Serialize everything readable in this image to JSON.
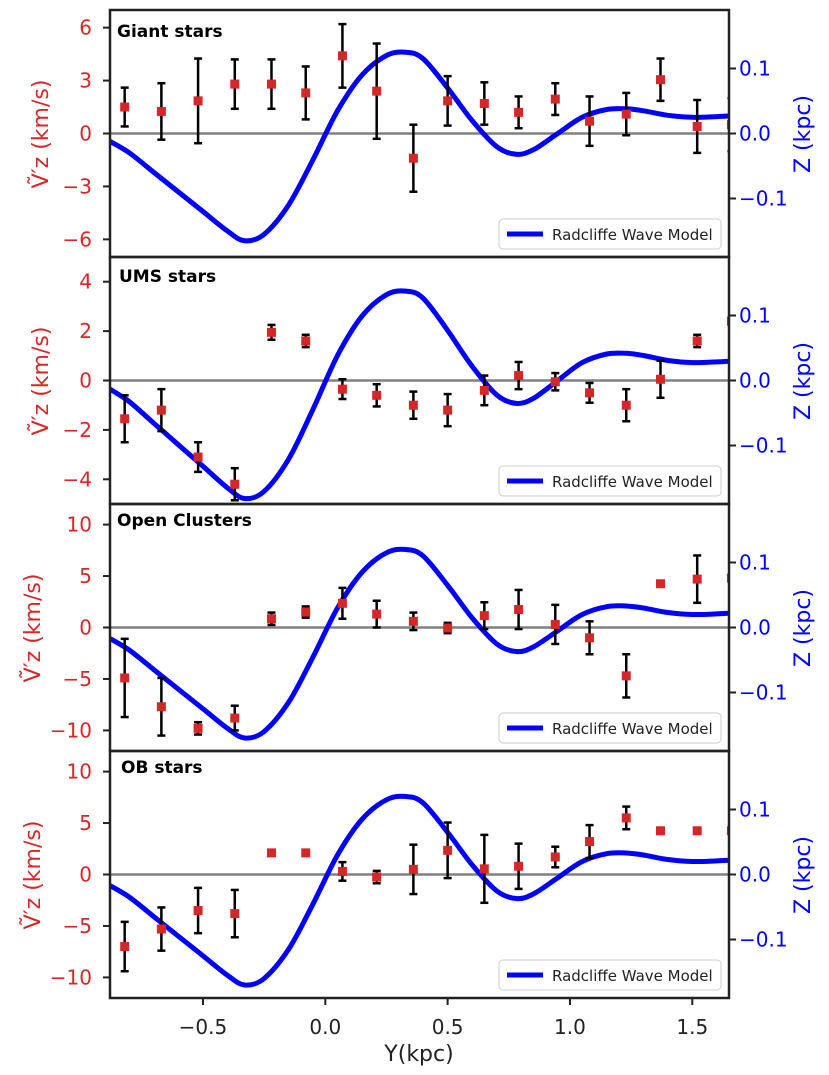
{
  "chart_data": {
    "type": "scatter",
    "xlabel": "Y(kpc)",
    "xlim": [
      -0.88,
      1.65
    ],
    "xticks": [
      -0.5,
      0.0,
      0.5,
      1.0,
      1.5
    ],
    "xtick_labels": [
      "−0.5",
      "0.0",
      "0.5",
      "1.0",
      "1.5"
    ],
    "right_ylabel": "Z (kpc)",
    "zlim": [
      -0.19,
      0.19
    ],
    "zticks": [
      -0.1,
      0.0,
      0.1
    ],
    "ztick_labels": [
      "−0.1",
      "0.0",
      "0.1"
    ],
    "legend_label": "Radcliffe Wave Model",
    "legend_loc": "lower right",
    "left_color": "#d62728",
    "right_color": "#0000ff",
    "zero_line_color": "#808080",
    "marker_color": "#d62728",
    "errorbar_color": "#000000",
    "x": [
      -0.82,
      -0.67,
      -0.52,
      -0.37,
      -0.22,
      -0.08,
      0.07,
      0.21,
      0.36,
      0.5,
      0.65,
      0.79,
      0.94,
      1.08,
      1.23,
      1.37,
      1.52,
      1.66
    ],
    "wave_model": {
      "y": [
        -0.88,
        -0.8,
        -0.7,
        -0.6,
        -0.5,
        -0.4,
        -0.33,
        -0.25,
        -0.15,
        -0.05,
        0.05,
        0.15,
        0.25,
        0.33,
        0.4,
        0.5,
        0.6,
        0.7,
        0.78,
        0.85,
        0.95,
        1.05,
        1.15,
        1.23,
        1.3,
        1.4,
        1.5,
        1.6,
        1.65
      ],
      "z": [
        -0.012,
        -0.03,
        -0.06,
        -0.09,
        -0.12,
        -0.15,
        -0.165,
        -0.155,
        -0.11,
        -0.04,
        0.035,
        0.09,
        0.12,
        0.125,
        0.115,
        0.07,
        0.02,
        -0.02,
        -0.032,
        -0.025,
        0.0,
        0.025,
        0.037,
        0.038,
        0.035,
        0.028,
        0.025,
        0.026,
        0.027
      ]
    },
    "panels": [
      {
        "name": "giant",
        "title": "Giant stars",
        "ylabel": "Ṽ′z (km/s)",
        "ylim": [
          -7.0,
          7.0
        ],
        "yticks": [
          -6,
          -3,
          0,
          3,
          6
        ],
        "ytick_labels": [
          "−6",
          "−3",
          "0",
          "3",
          "6"
        ],
        "model_z_scale": 1.0,
        "model_z_offset": 0.0,
        "values": [
          1.5,
          1.25,
          1.85,
          2.8,
          2.8,
          2.3,
          4.4,
          2.4,
          -1.4,
          1.85,
          1.7,
          1.2,
          1.95,
          0.7,
          1.1,
          3.05,
          0.4,
          0.5
        ],
        "errors": [
          1.1,
          1.6,
          2.4,
          1.4,
          1.4,
          1.5,
          1.8,
          2.7,
          1.9,
          1.4,
          1.2,
          0.9,
          0.9,
          1.4,
          1.2,
          1.2,
          1.5,
          1.5
        ]
      },
      {
        "name": "ums",
        "title": "UMS stars",
        "ylabel": "Ṽ′z (km/s)",
        "ylim": [
          -5.0,
          5.0
        ],
        "yticks": [
          -4,
          -2,
          0,
          2,
          4
        ],
        "ytick_labels": [
          "−4",
          "−2",
          "0",
          "2",
          "4"
        ],
        "model_z_scale": 1.1,
        "model_z_offset": 0.0,
        "values": [
          -1.55,
          -1.2,
          -3.1,
          -4.2,
          1.95,
          1.6,
          -0.35,
          -0.6,
          -1.0,
          -1.2,
          -0.4,
          0.2,
          -0.05,
          -0.5,
          -1.0,
          0.05,
          1.6,
          2.4
        ],
        "errors": [
          0.95,
          0.85,
          0.6,
          0.65,
          0.3,
          0.25,
          0.4,
          0.45,
          0.55,
          0.65,
          0.6,
          0.55,
          0.35,
          0.4,
          0.65,
          0.75,
          0.25,
          0.0
        ]
      },
      {
        "name": "open_clusters",
        "title": "Open Clusters",
        "ylabel": "Ṽ′z (km/s)",
        "ylim": [
          -12.0,
          12.0
        ],
        "yticks": [
          -10,
          -5,
          0,
          5,
          10
        ],
        "ytick_labels": [
          "−10",
          "−5",
          "0",
          "5",
          "10"
        ],
        "model_z_scale": 1.0,
        "model_z_offset": -0.005,
        "values": [
          -4.9,
          -7.7,
          -9.8,
          -8.8,
          0.85,
          1.5,
          2.35,
          1.3,
          0.6,
          -0.05,
          1.15,
          1.75,
          0.3,
          -1.0,
          -4.7,
          4.25,
          4.7,
          4.8
        ],
        "errors": [
          3.8,
          2.8,
          0.6,
          1.2,
          0.6,
          0.55,
          1.5,
          1.3,
          0.85,
          0.5,
          1.3,
          1.9,
          1.9,
          1.6,
          2.1,
          0.0,
          2.3,
          0.0
        ]
      },
      {
        "name": "ob",
        "title": "OB stars",
        "ylabel": "Ṽ′z (km/s)",
        "ylim": [
          -12.0,
          12.0
        ],
        "yticks": [
          -10,
          -5,
          0,
          5,
          10
        ],
        "ytick_labels": [
          "−10",
          "−5",
          "0",
          "5",
          "10"
        ],
        "model_z_scale": 1.0,
        "model_z_offset": -0.005,
        "values": [
          -7.0,
          -5.3,
          -3.5,
          -3.8,
          2.1,
          2.1,
          0.3,
          -0.25,
          0.5,
          2.35,
          0.55,
          0.8,
          1.7,
          3.2,
          5.5,
          4.25,
          4.25,
          4.25
        ],
        "errors": [
          2.4,
          2.1,
          2.2,
          2.3,
          0.0,
          0.0,
          0.9,
          0.6,
          2.4,
          2.7,
          3.3,
          2.2,
          1.0,
          1.6,
          1.1,
          0.0,
          0.0,
          0.0
        ]
      }
    ]
  }
}
